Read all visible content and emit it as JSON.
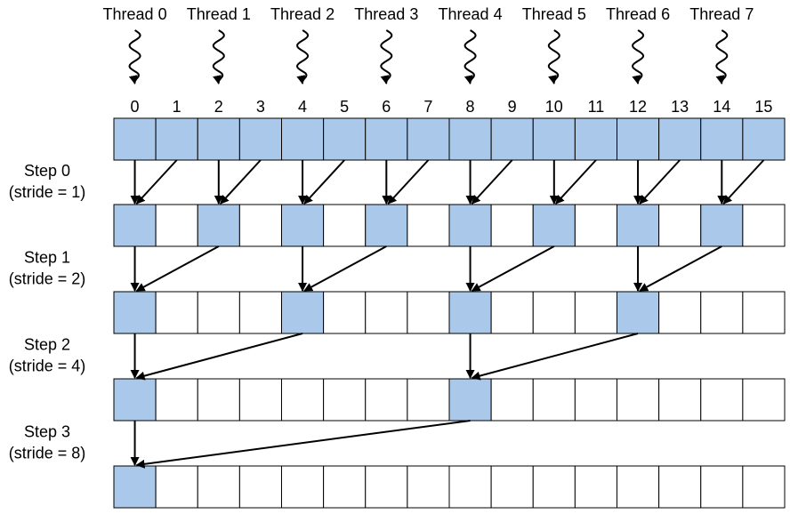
{
  "threads": [
    "Thread 0",
    "Thread 1",
    "Thread 2",
    "Thread 3",
    "Thread 4",
    "Thread 5",
    "Thread 6",
    "Thread 7"
  ],
  "indices": [
    0,
    1,
    2,
    3,
    4,
    5,
    6,
    7,
    8,
    9,
    10,
    11,
    12,
    13,
    14,
    15
  ],
  "steps": [
    {
      "label": "Step 0",
      "stride": "(stride = 1)"
    },
    {
      "label": "Step 1",
      "stride": "(stride = 2)"
    },
    {
      "label": "Step 2",
      "stride": "(stride = 4)"
    },
    {
      "label": "Step 3",
      "stride": "(stride = 8)"
    }
  ]
}
